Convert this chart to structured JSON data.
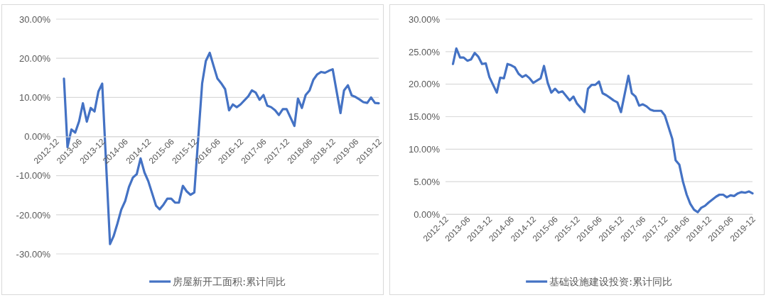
{
  "chart_data": [
    {
      "type": "line",
      "xlim": [
        "2012-12",
        "2019-12"
      ],
      "xticks": [
        "2012-12",
        "2013-06",
        "2013-12",
        "2014-06",
        "2014-12",
        "2015-06",
        "2015-12",
        "2016-06",
        "2016-12",
        "2017-06",
        "2017-12",
        "2018-06",
        "2018-12",
        "2019-06",
        "2019-12"
      ],
      "ylim": [
        -30,
        30
      ],
      "yticks": [
        {
          "value": 30,
          "label": "30.00%"
        },
        {
          "value": 20,
          "label": "20.00%"
        },
        {
          "value": 10,
          "label": "10.00%"
        },
        {
          "value": 0,
          "label": "0.00%"
        },
        {
          "value": -10,
          "label": "-10.00%"
        },
        {
          "value": -20,
          "label": "-20.00%"
        },
        {
          "value": -30,
          "label": "-30.00%"
        }
      ],
      "grid": "y",
      "legend": "bottom",
      "marker": "none",
      "line_style": "solid",
      "x": [
        "2013-02",
        "2013-03",
        "2013-04",
        "2013-05",
        "2013-06",
        "2013-07",
        "2013-08",
        "2013-09",
        "2013-10",
        "2013-11",
        "2013-12",
        "2014-02",
        "2014-03",
        "2014-04",
        "2014-05",
        "2014-06",
        "2014-07",
        "2014-08",
        "2014-09",
        "2014-10",
        "2014-11",
        "2014-12",
        "2015-02",
        "2015-03",
        "2015-04",
        "2015-05",
        "2015-06",
        "2015-07",
        "2015-08",
        "2015-09",
        "2015-10",
        "2015-11",
        "2015-12",
        "2016-02",
        "2016-03",
        "2016-04",
        "2016-05",
        "2016-06",
        "2016-07",
        "2016-08",
        "2016-09",
        "2016-10",
        "2016-11",
        "2016-12",
        "2017-02",
        "2017-03",
        "2017-04",
        "2017-05",
        "2017-06",
        "2017-07",
        "2017-08",
        "2017-09",
        "2017-10",
        "2017-11",
        "2017-12",
        "2018-02",
        "2018-03",
        "2018-04",
        "2018-05",
        "2018-06",
        "2018-07",
        "2018-08",
        "2018-09",
        "2018-10",
        "2018-11",
        "2018-12",
        "2019-02",
        "2019-03",
        "2019-04",
        "2019-05",
        "2019-06",
        "2019-07",
        "2019-08",
        "2019-09",
        "2019-10",
        "2019-11",
        "2019-12"
      ],
      "series": [
        {
          "name": "房屋新开工面积:累计同比",
          "color": "#4472c4",
          "values": [
            14.8,
            -2.7,
            1.8,
            1.0,
            3.9,
            8.5,
            3.8,
            7.3,
            6.4,
            11.5,
            13.5,
            -27.5,
            -25.5,
            -22.2,
            -18.7,
            -16.5,
            -12.9,
            -10.5,
            -9.6,
            -5.6,
            -9.2,
            -11.4,
            -17.7,
            -18.6,
            -17.4,
            -15.9,
            -15.9,
            -16.9,
            -16.9,
            -12.6,
            -14.0,
            -14.9,
            -14.3,
            13.6,
            19.3,
            21.4,
            18.1,
            14.8,
            13.6,
            12.1,
            6.7,
            8.2,
            7.5,
            8.2,
            10.3,
            11.8,
            11.2,
            9.4,
            10.6,
            7.9,
            7.5,
            6.7,
            5.5,
            7.0,
            7.0,
            2.7,
            9.7,
            7.3,
            10.6,
            11.8,
            14.5,
            15.9,
            16.5,
            16.3,
            16.8,
            17.2,
            6.0,
            11.8,
            13.1,
            10.5,
            10.1,
            9.5,
            8.8,
            8.6,
            10.0,
            8.6,
            8.5
          ]
        }
      ]
    },
    {
      "type": "line",
      "xlim": [
        "2012-12",
        "2019-12"
      ],
      "xticks": [
        "2012-12",
        "2013-06",
        "2013-12",
        "2014-06",
        "2014-12",
        "2015-06",
        "2015-12",
        "2016-06",
        "2016-12",
        "2017-06",
        "2017-12",
        "2018-06",
        "2018-12",
        "2019-06",
        "2019-12"
      ],
      "ylim": [
        0,
        30
      ],
      "yticks": [
        {
          "value": 30,
          "label": "30.00%"
        },
        {
          "value": 25,
          "label": "25.00%"
        },
        {
          "value": 20,
          "label": "20.00%"
        },
        {
          "value": 15,
          "label": "15.00%"
        },
        {
          "value": 10,
          "label": "10.00%"
        },
        {
          "value": 5,
          "label": "5.00%"
        },
        {
          "value": 0,
          "label": "0.00%"
        }
      ],
      "grid": "y",
      "legend": "bottom",
      "marker": "none",
      "line_style": "solid",
      "x": [
        "2013-02",
        "2013-03",
        "2013-04",
        "2013-05",
        "2013-06",
        "2013-07",
        "2013-08",
        "2013-09",
        "2013-10",
        "2013-11",
        "2013-12",
        "2014-02",
        "2014-03",
        "2014-04",
        "2014-05",
        "2014-06",
        "2014-07",
        "2014-08",
        "2014-09",
        "2014-10",
        "2014-11",
        "2014-12",
        "2015-02",
        "2015-03",
        "2015-04",
        "2015-05",
        "2015-06",
        "2015-07",
        "2015-08",
        "2015-09",
        "2015-10",
        "2015-11",
        "2015-12",
        "2016-02",
        "2016-03",
        "2016-04",
        "2016-05",
        "2016-06",
        "2016-07",
        "2016-08",
        "2016-09",
        "2016-10",
        "2016-11",
        "2016-12",
        "2017-02",
        "2017-03",
        "2017-04",
        "2017-05",
        "2017-06",
        "2017-07",
        "2017-08",
        "2017-09",
        "2017-10",
        "2017-11",
        "2017-12",
        "2018-02",
        "2018-03",
        "2018-04",
        "2018-05",
        "2018-06",
        "2018-07",
        "2018-08",
        "2018-09",
        "2018-10",
        "2018-11",
        "2018-12",
        "2019-02",
        "2019-03",
        "2019-04",
        "2019-05",
        "2019-06",
        "2019-07",
        "2019-08",
        "2019-09",
        "2019-10",
        "2019-11",
        "2019-12"
      ],
      "series": [
        {
          "name": "基础设施建设投资:累计同比",
          "color": "#4472c4",
          "values": [
            23.1,
            25.5,
            24.1,
            24.1,
            23.6,
            23.8,
            24.8,
            24.2,
            23.1,
            23.2,
            21.1,
            18.7,
            21.0,
            20.9,
            23.1,
            22.9,
            22.6,
            21.6,
            21.1,
            21.4,
            20.9,
            20.2,
            20.9,
            22.8,
            20.2,
            18.7,
            19.3,
            18.7,
            18.9,
            18.2,
            17.5,
            18.1,
            17.0,
            15.7,
            19.3,
            19.9,
            19.9,
            20.4,
            18.6,
            18.3,
            17.9,
            17.5,
            17.2,
            15.7,
            21.3,
            18.6,
            18.1,
            16.7,
            16.9,
            16.6,
            16.1,
            15.9,
            15.9,
            15.9,
            15.2,
            11.6,
            8.3,
            7.6,
            5.0,
            3.0,
            1.6,
            0.7,
            0.3,
            1.0,
            1.3,
            1.8,
            2.7,
            3.0,
            3.0,
            2.6,
            2.9,
            2.8,
            3.2,
            3.4,
            3.3,
            3.5,
            3.2
          ]
        }
      ]
    }
  ]
}
